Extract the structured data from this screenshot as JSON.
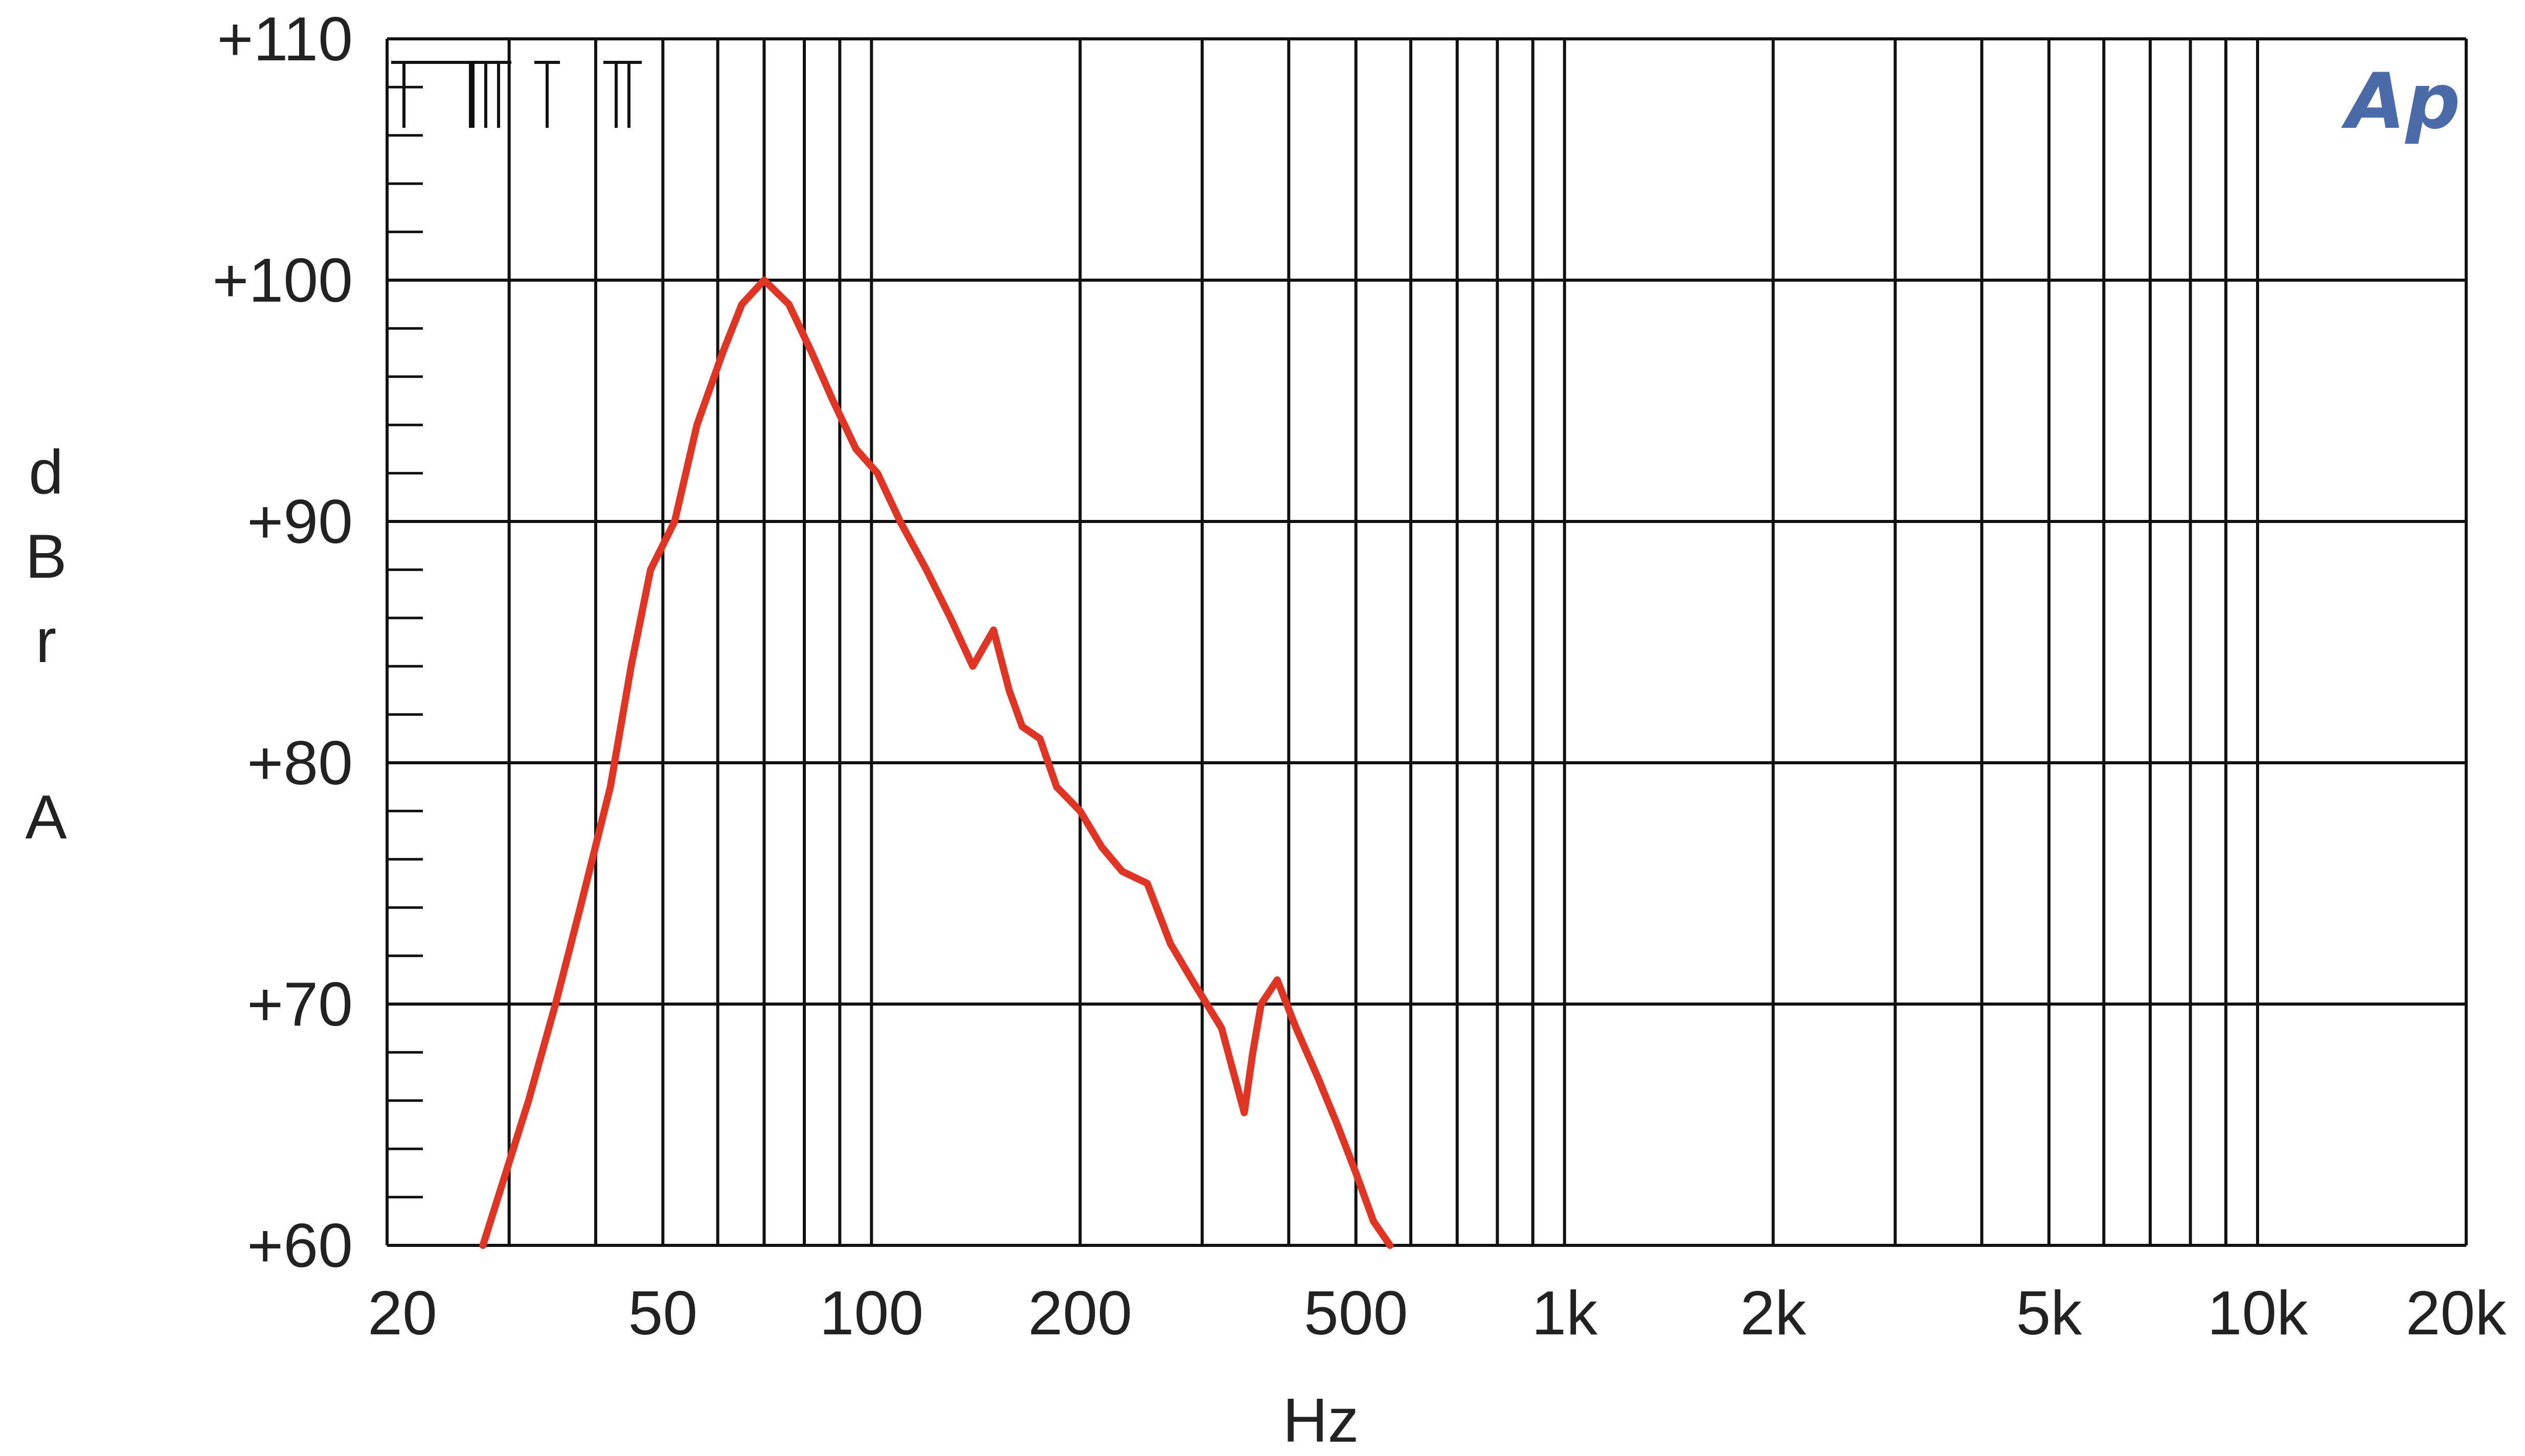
{
  "chart_data": {
    "type": "line",
    "title": "",
    "xlabel": "Hz",
    "ylabel": "dBrA",
    "ylabel_letters": [
      "d",
      "B",
      "r",
      "A"
    ],
    "x_scale": "log",
    "xlim": [
      20,
      20000
    ],
    "ylim": [
      60,
      110
    ],
    "x_ticks": [
      {
        "value": 20,
        "label": "20"
      },
      {
        "value": 50,
        "label": "50"
      },
      {
        "value": 100,
        "label": "100"
      },
      {
        "value": 200,
        "label": "200"
      },
      {
        "value": 500,
        "label": "500"
      },
      {
        "value": 1000,
        "label": "1k"
      },
      {
        "value": 2000,
        "label": "2k"
      },
      {
        "value": 5000,
        "label": "5k"
      },
      {
        "value": 10000,
        "label": "10k"
      },
      {
        "value": 20000,
        "label": "20k"
      }
    ],
    "y_ticks": [
      {
        "value": 110,
        "label": "+110"
      },
      {
        "value": 100,
        "label": "+100"
      },
      {
        "value": 90,
        "label": "+90"
      },
      {
        "value": 80,
        "label": "+80"
      },
      {
        "value": 70,
        "label": "+70"
      },
      {
        "value": 60,
        "label": "+60"
      }
    ],
    "grid": true,
    "logo": "Ap",
    "colors": {
      "series": "#e03424",
      "grid": "#111111",
      "text": "#222222",
      "logo": "#4a6aa8"
    },
    "series": [
      {
        "x": [
          27.5,
          32,
          35,
          38,
          42,
          45,
          48,
          52,
          56,
          61,
          65,
          70,
          76,
          82,
          88,
          95,
          102,
          110,
          120,
          130,
          140,
          150,
          158,
          165,
          175,
          185,
          200,
          215,
          230,
          250,
          270,
          290,
          320,
          345,
          355,
          365,
          385,
          410,
          440,
          470,
          500,
          530,
          560
        ],
        "y": [
          60,
          66,
          70,
          74,
          79,
          84,
          88,
          90,
          94,
          97,
          99,
          100,
          99,
          97,
          95,
          93,
          92,
          90,
          88,
          86,
          84,
          85.5,
          83,
          81.5,
          81,
          79,
          78,
          76.5,
          75.5,
          75,
          72.5,
          71,
          69,
          65.5,
          68,
          70,
          71,
          69,
          67,
          65,
          63,
          61,
          60
        ]
      }
    ]
  }
}
